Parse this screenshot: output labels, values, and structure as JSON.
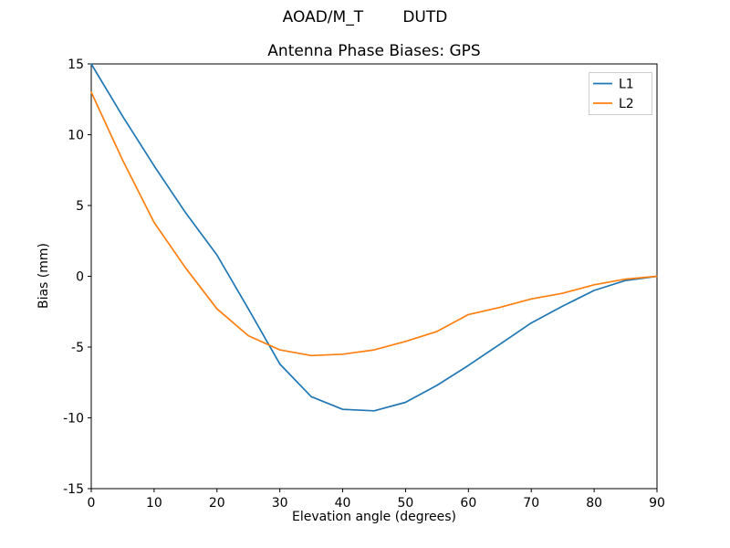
{
  "figure": {
    "suptitle": "AOAD/M_T        DUTD",
    "background": "#ffffff"
  },
  "chart_data": {
    "type": "line",
    "suptitle": "AOAD/M_T        DUTD",
    "title": "Antenna Phase Biases: GPS",
    "xlabel": "Elevation angle (degrees)",
    "ylabel": "Bias (mm)",
    "xlim": [
      0,
      90
    ],
    "ylim": [
      -15,
      15
    ],
    "xticks": [
      0,
      10,
      20,
      30,
      40,
      50,
      60,
      70,
      80,
      90
    ],
    "yticks": [
      -15,
      -10,
      -5,
      0,
      5,
      10,
      15
    ],
    "grid": false,
    "legend_position": "upper right",
    "x": [
      0,
      5,
      10,
      15,
      20,
      25,
      30,
      35,
      40,
      45,
      50,
      55,
      60,
      65,
      70,
      75,
      80,
      85,
      90
    ],
    "series": [
      {
        "name": "L1",
        "color": "#1f77b4",
        "values": [
          15.0,
          11.3,
          7.8,
          4.5,
          1.5,
          -2.3,
          -6.2,
          -8.5,
          -9.4,
          -9.5,
          -8.9,
          -7.7,
          -6.3,
          -4.8,
          -3.3,
          -2.1,
          -1.0,
          -0.3,
          0.0
        ]
      },
      {
        "name": "L2",
        "color": "#ff7f0e",
        "values": [
          13.0,
          8.2,
          3.8,
          0.6,
          -2.3,
          -4.2,
          -5.2,
          -5.6,
          -5.5,
          -5.2,
          -4.6,
          -3.9,
          -2.7,
          -2.2,
          -1.6,
          -1.2,
          -0.6,
          -0.2,
          0.0
        ]
      }
    ]
  }
}
